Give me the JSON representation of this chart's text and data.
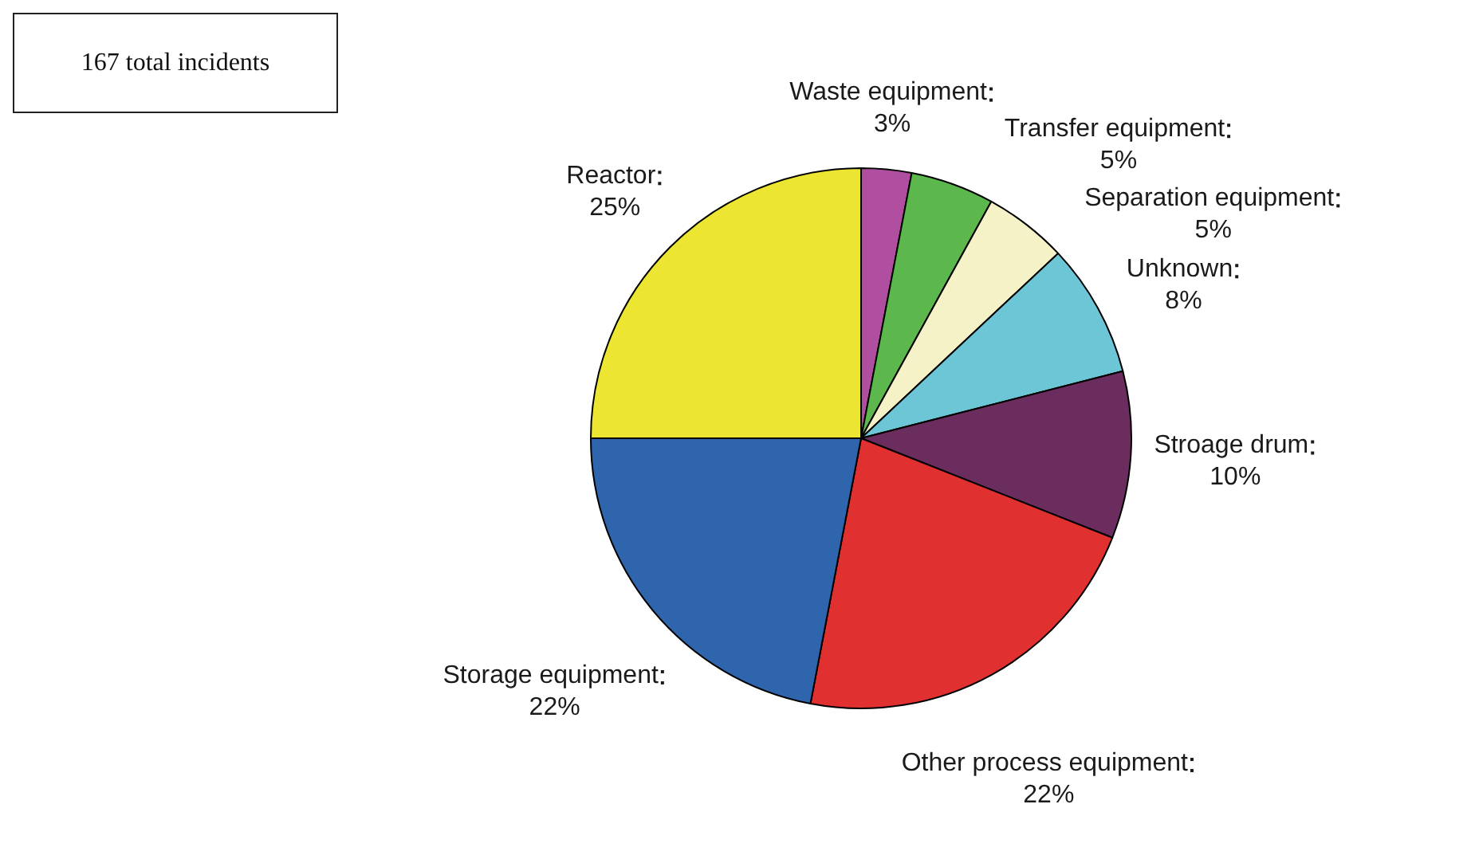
{
  "chart_data": {
    "type": "pie",
    "categories": [
      "Waste equipment",
      "Transfer equipment",
      "Separation equipment",
      "Unknown",
      "Stroage drum",
      "Other process equipment",
      "Storage equipment",
      "Reactor"
    ],
    "values": [
      3,
      5,
      5,
      8,
      10,
      22,
      22,
      25
    ],
    "value_labels": [
      "3%",
      "5%",
      "5%",
      "8%",
      "10%",
      "22%",
      "22%",
      "25%"
    ],
    "colors": [
      "#b04fa0",
      "#5cb84c",
      "#f5f2c8",
      "#6cc6d6",
      "#6a2d5e",
      "#e03030",
      "#2e65ac",
      "#ece633"
    ],
    "annotations": [
      "167 total incidents"
    ],
    "legend": false
  }
}
